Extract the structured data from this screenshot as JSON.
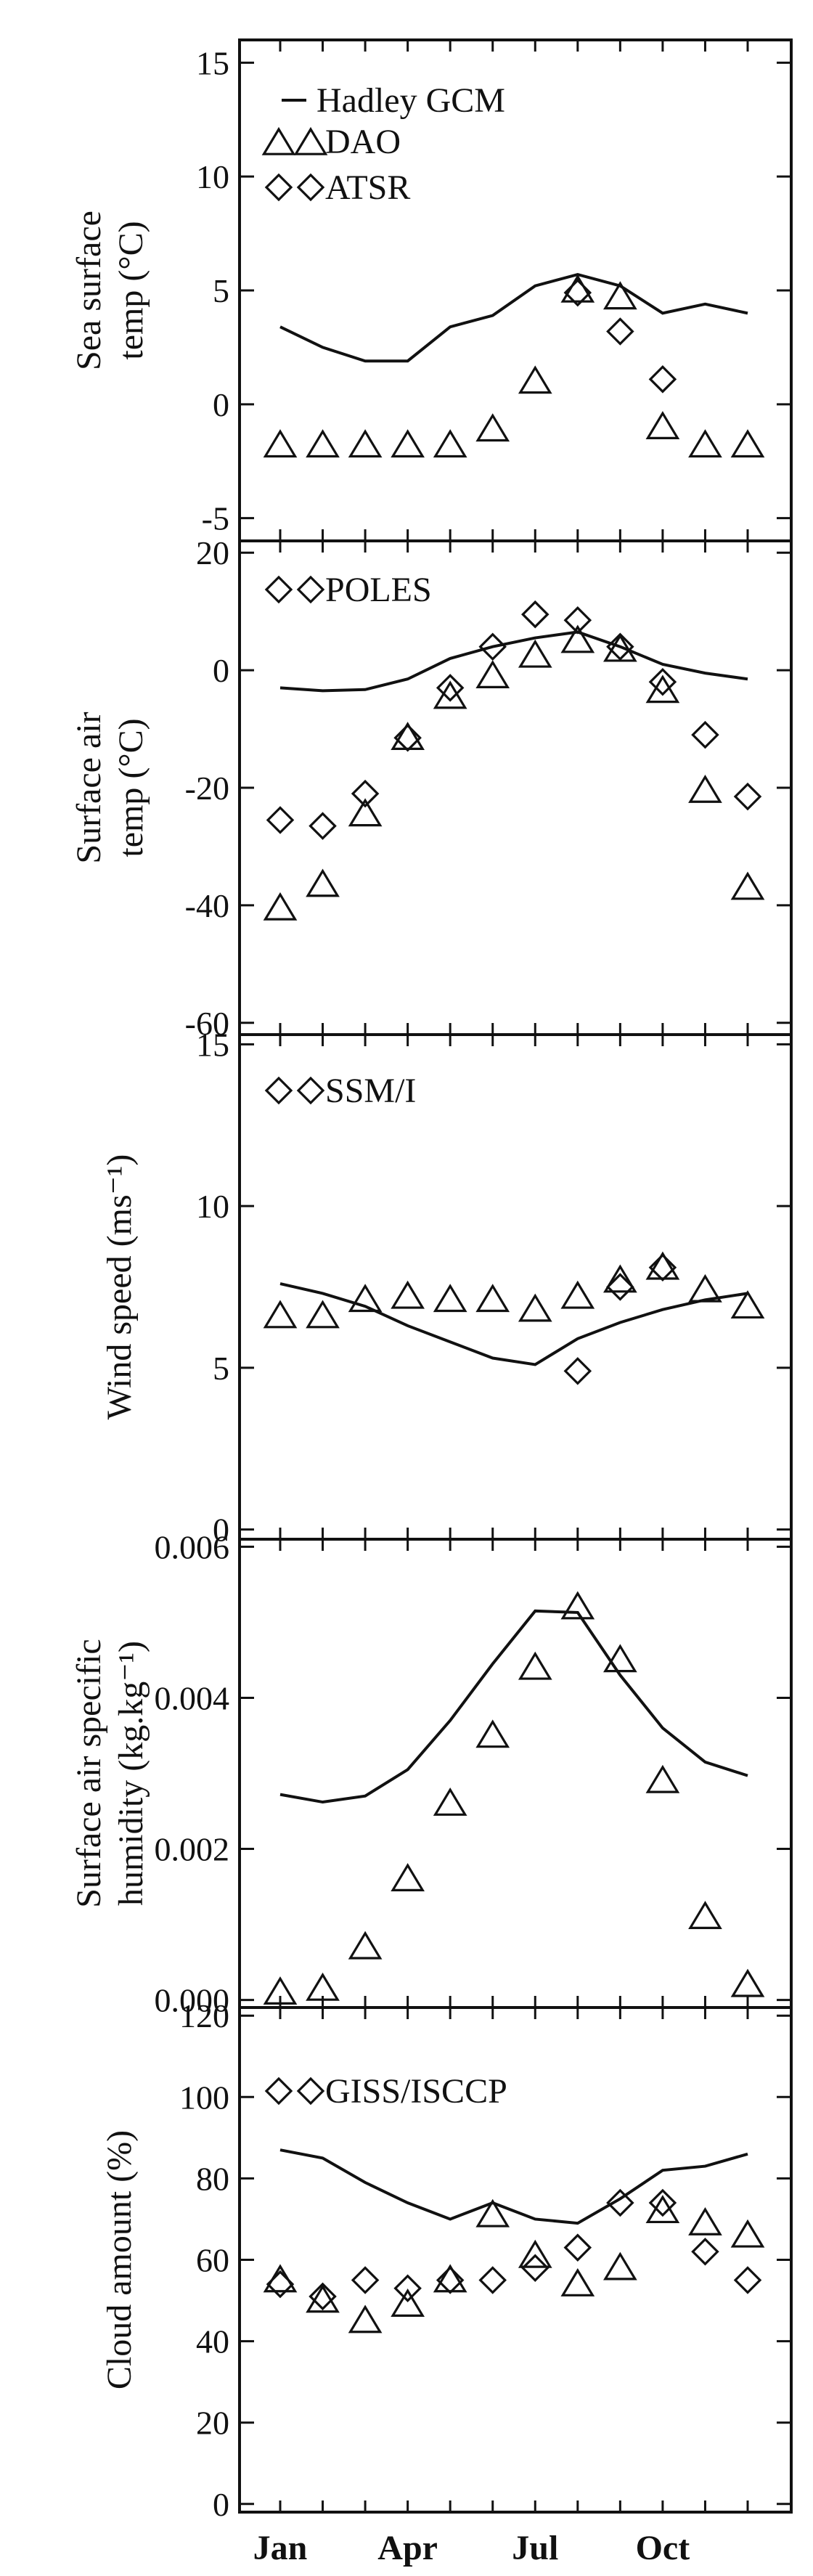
{
  "months": [
    "Jan",
    "Apr",
    "Jul",
    "Oct"
  ],
  "chart_data": [
    {
      "type": "line",
      "ylabel": [
        "Sea surface",
        "temp (°C)"
      ],
      "ylim": [
        -6,
        16
      ],
      "yticks": [
        -5,
        0,
        5,
        10,
        15
      ],
      "yticklabels": [
        "-5",
        "0",
        "5",
        "10",
        "15"
      ],
      "x": [
        1,
        2,
        3,
        4,
        5,
        6,
        7,
        8,
        9,
        10,
        11,
        12
      ],
      "legend": [
        {
          "symbol": "line",
          "label": "Hadley GCM"
        },
        {
          "symbol": "triangle",
          "label": "DAO"
        },
        {
          "symbol": "diamond",
          "label": "ATSR"
        }
      ],
      "series": [
        {
          "name": "Hadley GCM",
          "marker": "line",
          "values": [
            3.4,
            2.5,
            1.9,
            1.9,
            3.4,
            3.9,
            5.2,
            5.7,
            5.2,
            4.0,
            4.4,
            4.0
          ]
        },
        {
          "name": "DAO",
          "marker": "triangle",
          "values": [
            -1.8,
            -1.8,
            -1.8,
            -1.8,
            -1.8,
            -1.1,
            1.0,
            5.0,
            4.7,
            -1.0,
            -1.8,
            -1.8
          ]
        },
        {
          "name": "ATSR",
          "marker": "diamond",
          "x": [
            8,
            9,
            10
          ],
          "values": [
            4.9,
            3.2,
            1.1
          ]
        }
      ]
    },
    {
      "type": "line",
      "ylabel": [
        "Surface air",
        "temp (°C)"
      ],
      "ylim": [
        -62,
        22
      ],
      "yticks": [
        -60,
        -40,
        -20,
        0,
        20
      ],
      "yticklabels": [
        "-60",
        "-40",
        "-20",
        "0",
        "20"
      ],
      "x": [
        1,
        2,
        3,
        4,
        5,
        6,
        7,
        8,
        9,
        10,
        11,
        12
      ],
      "legend": [
        {
          "symbol": "diamond",
          "label": "POLES"
        }
      ],
      "series": [
        {
          "name": "Hadley GCM",
          "marker": "line",
          "values": [
            -3.0,
            -3.5,
            -3.3,
            -1.5,
            2.0,
            4.0,
            5.5,
            6.5,
            4.0,
            1.0,
            -0.5,
            -1.5
          ]
        },
        {
          "name": "DAO",
          "marker": "triangle",
          "values": [
            -40.5,
            -36.5,
            -24.5,
            -11.5,
            -4.5,
            -1.0,
            2.5,
            5.0,
            3.5,
            -3.5,
            -20.5,
            -37.0
          ]
        },
        {
          "name": "POLES",
          "marker": "diamond",
          "values": [
            -25.5,
            -26.5,
            -21.0,
            -11.5,
            -3.0,
            4.0,
            9.5,
            8.5,
            4.0,
            -2.0,
            -11.0,
            -21.5
          ]
        }
      ]
    },
    {
      "type": "line",
      "ylabel": [
        "Wind speed (ms⁻¹)"
      ],
      "ylim": [
        -0.3,
        15.3
      ],
      "yticks": [
        0,
        5,
        10,
        15
      ],
      "yticklabels": [
        "0",
        "5",
        "10",
        "15"
      ],
      "x": [
        1,
        2,
        3,
        4,
        5,
        6,
        7,
        8,
        9,
        10,
        11,
        12
      ],
      "legend": [
        {
          "symbol": "diamond",
          "label": "SSM/I"
        }
      ],
      "series": [
        {
          "name": "Hadley GCM",
          "marker": "line",
          "values": [
            7.6,
            7.3,
            6.9,
            6.3,
            5.8,
            5.3,
            5.1,
            5.9,
            6.4,
            6.8,
            7.1,
            7.3
          ]
        },
        {
          "name": "DAO",
          "marker": "triangle",
          "values": [
            6.6,
            6.6,
            7.1,
            7.2,
            7.1,
            7.1,
            6.8,
            7.2,
            7.7,
            8.1,
            7.4,
            6.9
          ]
        },
        {
          "name": "SSM/I",
          "marker": "diamond",
          "x": [
            8,
            9,
            10
          ],
          "values": [
            4.9,
            7.5,
            8.1
          ]
        }
      ]
    },
    {
      "type": "line",
      "ylabel": [
        "Surface air specific",
        "humidity (kg.kg⁻¹)"
      ],
      "ylim": [
        -0.0001,
        0.0061
      ],
      "yticks": [
        0,
        0.002,
        0.004,
        0.006
      ],
      "yticklabels": [
        "0.000",
        "0.002",
        "0.004",
        "0.006"
      ],
      "x": [
        1,
        2,
        3,
        4,
        5,
        6,
        7,
        8,
        9,
        10,
        11,
        12
      ],
      "series": [
        {
          "name": "Hadley GCM",
          "marker": "line",
          "values": [
            0.00272,
            0.00262,
            0.0027,
            0.00305,
            0.0037,
            0.00445,
            0.00515,
            0.00513,
            0.0043,
            0.0036,
            0.00315,
            0.00297
          ]
        },
        {
          "name": "DAO",
          "marker": "triangle",
          "values": [
            0.0001,
            0.00015,
            0.0007,
            0.0016,
            0.0026,
            0.0035,
            0.0044,
            0.0052,
            0.0045,
            0.0029,
            0.0011,
            0.0002
          ]
        }
      ]
    },
    {
      "type": "line",
      "ylabel": [
        "Cloud amount (%)"
      ],
      "ylim": [
        -2,
        122
      ],
      "yticks": [
        0,
        20,
        40,
        60,
        80,
        100,
        120
      ],
      "yticklabels": [
        "0",
        "20",
        "40",
        "60",
        "80",
        "100",
        "120"
      ],
      "x": [
        1,
        2,
        3,
        4,
        5,
        6,
        7,
        8,
        9,
        10,
        11,
        12
      ],
      "legend": [
        {
          "symbol": "diamond",
          "label": "GISS/ISCCP"
        }
      ],
      "series": [
        {
          "name": "Hadley GCM",
          "marker": "line",
          "values": [
            87,
            85,
            79,
            74,
            70,
            74,
            70,
            69,
            75,
            82,
            83,
            86
          ]
        },
        {
          "name": "DAO",
          "marker": "triangle",
          "values": [
            55,
            50,
            45,
            49,
            55,
            71,
            61,
            54,
            58,
            72,
            69,
            66
          ]
        },
        {
          "name": "GISS/ISCCP",
          "marker": "diamond",
          "values": [
            54,
            51,
            55,
            53,
            55,
            55,
            58,
            63,
            74,
            74,
            62,
            55
          ]
        }
      ]
    }
  ]
}
